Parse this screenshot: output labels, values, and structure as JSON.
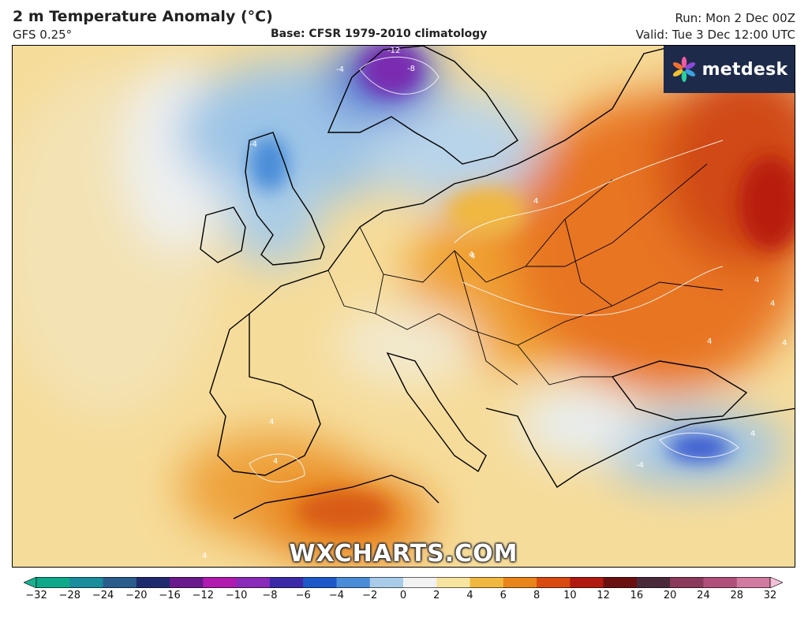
{
  "header": {
    "title": "2 m Temperature Anomaly (°C)",
    "model": "GFS 0.25°",
    "base": "Base: CFSR 1979-2010 climatology",
    "run": "Run: Mon 2 Dec 00Z",
    "valid": "Valid: Tue 3 Dec 12:00 UTC"
  },
  "brand": {
    "name": "metdesk",
    "icon": "pinwheel-logo-icon"
  },
  "watermark": "WXCHARTS.COM",
  "map": {
    "region": "Europe",
    "contour_labels": [
      "-12",
      "-8",
      "-4",
      "-4",
      "-4",
      "4",
      "4",
      "4",
      "4",
      "4",
      "4",
      "4",
      "4",
      "4",
      "4",
      "4"
    ]
  },
  "colorbar": {
    "ticks": [
      "−32",
      "−28",
      "−24",
      "−20",
      "−16",
      "−12",
      "−10",
      "−8",
      "−6",
      "−4",
      "−2",
      "0",
      "2",
      "4",
      "6",
      "8",
      "10",
      "12",
      "16",
      "20",
      "24",
      "28",
      "32"
    ],
    "colors": [
      "#0fa88a",
      "#1a8c9c",
      "#2a5c8c",
      "#1f2a6e",
      "#6a1a8a",
      "#b01ab0",
      "#8a2ab8",
      "#3a2aa8",
      "#1e58c8",
      "#4a8cd8",
      "#a8cce8",
      "#f2f2f2",
      "#f6e4a0",
      "#f0b840",
      "#e8841a",
      "#d84a10",
      "#b01a10",
      "#6a1010",
      "#4a2a3a",
      "#8a3a5a",
      "#b0507a",
      "#d07aa0",
      "#f0b0c8"
    ],
    "left_end": "#1ab090",
    "right_end": "#f4c0d8"
  }
}
